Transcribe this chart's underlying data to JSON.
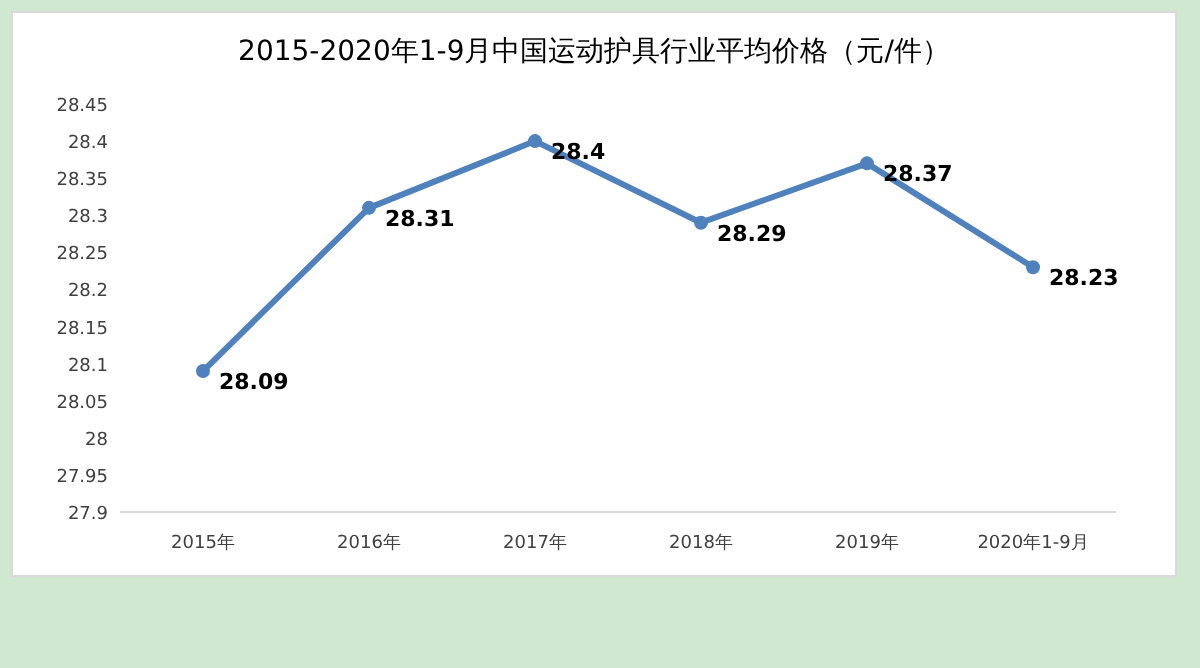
{
  "chart_data": {
    "type": "line",
    "title": "2015-2020年1-9月中国运动护具行业平均价格（元/件）",
    "categories": [
      "2015年",
      "2016年",
      "2017年",
      "2018年",
      "2019年",
      "2020年1-9月"
    ],
    "values": [
      28.09,
      28.31,
      28.4,
      28.29,
      28.37,
      28.23
    ],
    "color": "#4f81bd",
    "marker": "circle",
    "data_labels": true,
    "ylim": [
      27.9,
      28.45
    ],
    "yticks": [
      27.9,
      27.95,
      28,
      28.05,
      28.1,
      28.15,
      28.2,
      28.25,
      28.3,
      28.35,
      28.4,
      28.45
    ]
  }
}
